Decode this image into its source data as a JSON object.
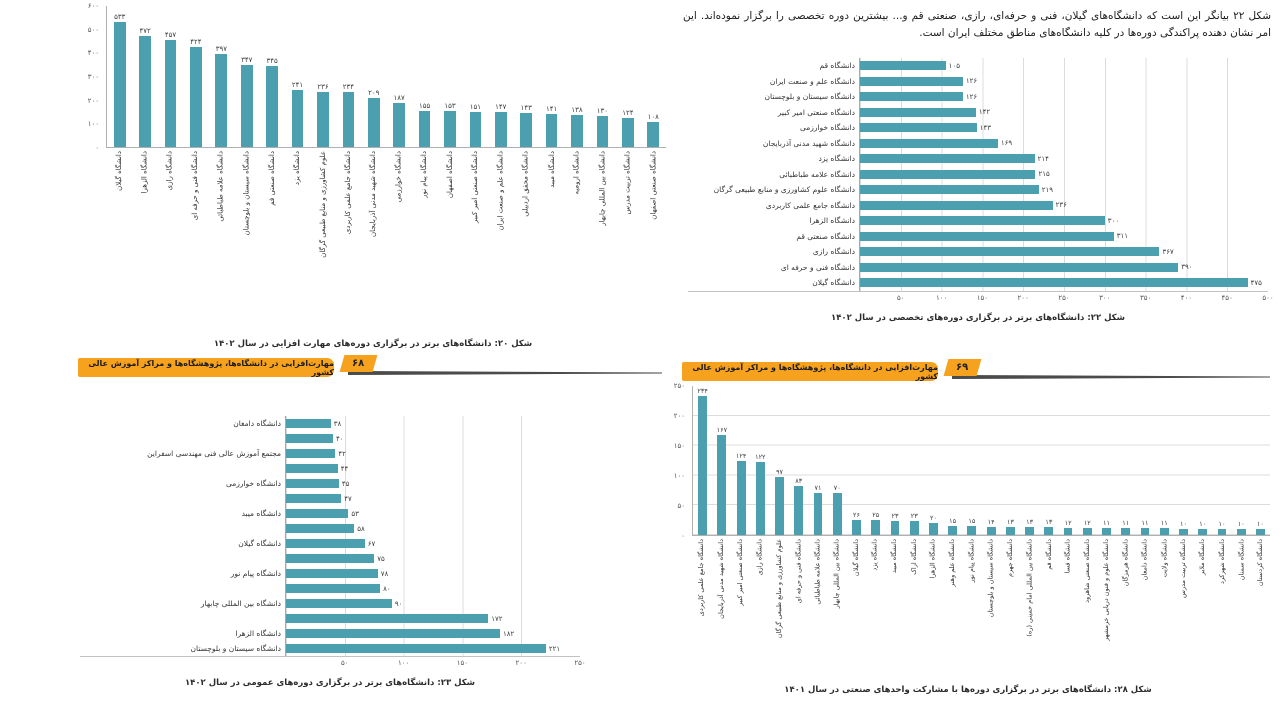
{
  "colors": {
    "bar_teal": "#4c9fae",
    "banner_orange": "#F6A21E",
    "banner_line": "#4b4b4b",
    "grid": "#dcdcdc"
  },
  "intro": {
    "text": "شکل ۲۲ بیانگر این است که دانشگاه‌های گیلان، فنی و حرفه‌ای، رازی، صنعتی قم و... بیشترین دوره تخصصی را برگزار نموده‌اند. این امر نشان دهنده پراکندگی دوره‌ها در کلیه دانشگاه‌های مناطق مختلف ایران است."
  },
  "banners": [
    {
      "text": "مهارت‌افزایی در دانشگاه‌ها، پژوهشگاه‌ها و مراکز آموزش عالی کشور",
      "page": "۶۸"
    },
    {
      "text": "مهارت‌افزایی در دانشگاه‌ها، پژوهشگاه‌ها و مراکز آموزش عالی کشور",
      "page": "۶۹"
    }
  ],
  "chart_data": [
    {
      "type": "bar",
      "caption": "شکل ۲۰: دانشگاه‌های برتر در برگزاری دوره‌های مهارت افزایی در سال ۱۴۰۲",
      "ymax": 600,
      "yticks": [
        600,
        500,
        400,
        300,
        200,
        100,
        0
      ],
      "grid": false,
      "bars": [
        {
          "label": "دانشگاه گیلان",
          "value": 533
        },
        {
          "label": "دانشگاه الزهرا",
          "value": 472
        },
        {
          "label": "دانشگاه رازی",
          "value": 457
        },
        {
          "label": "دانشگاه فنی و حرفه ای",
          "value": 424
        },
        {
          "label": "دانشگاه علامه طباطبائی",
          "value": 397
        },
        {
          "label": "دانشگاه سیستان و بلوچستان",
          "value": 347
        },
        {
          "label": "دانشگاه صنعتی قم",
          "value": 345
        },
        {
          "label": "دانشگاه یزد",
          "value": 241
        },
        {
          "label": "علوم کشاورزی و منابع طبیعی گرگان",
          "value": 236
        },
        {
          "label": "دانشگاه جامع علمی کاربردی",
          "value": 234
        },
        {
          "label": "دانشگاه شهید مدنی آذربایجان",
          "value": 209
        },
        {
          "label": "دانشگاه خوارزمی",
          "value": 187
        },
        {
          "label": "دانشگاه پیام نور",
          "value": 155
        },
        {
          "label": "دانشگاه اصفهان",
          "value": 153
        },
        {
          "label": "دانشگاه صنعتی امیر کبیر",
          "value": 151
        },
        {
          "label": "دانشگاه علم و صنعت ایران",
          "value": 147
        },
        {
          "label": "دانشگاه محقق اردبیلی",
          "value": 143
        },
        {
          "label": "دانشگاه میبد",
          "value": 141
        },
        {
          "label": "دانشگاه ارومیه",
          "value": 138
        },
        {
          "label": "دانشگاه بین المللی چابهار",
          "value": 130
        },
        {
          "label": "دانشگاه تربیت مدرس",
          "value": 124
        },
        {
          "label": "دانشگاه صنعتی اصفهان",
          "value": 108
        }
      ]
    },
    {
      "type": "hbar",
      "caption": "شکل ۲۲: دانشگاه‌های برتر در برگزاری دوره‌های  تخصصی در سال ۱۴۰۲",
      "xmax": 500,
      "xticks": [
        50,
        100,
        150,
        200,
        250,
        300,
        350,
        400,
        450,
        500
      ],
      "bars": [
        {
          "label": "دانشگاه قم",
          "value": 105
        },
        {
          "label": "دانشگاه علم و صنعت ایران",
          "value": 126
        },
        {
          "label": "دانشگاه سیستان و بلوچستان",
          "value": 126
        },
        {
          "label": "دانشگاه صنعتی امیر کبیر",
          "value": 142
        },
        {
          "label": "دانشگاه خوارزمی",
          "value": 143
        },
        {
          "label": "دانشگاه شهید مدنی آذربایجان",
          "value": 169
        },
        {
          "label": "دانشگاه یزد",
          "value": 214
        },
        {
          "label": "دانشگاه علامه طباطبائی",
          "value": 215
        },
        {
          "label": "دانشگاه علوم کشاورزی و منابع طبیعی گرگان",
          "value": 219
        },
        {
          "label": "دانشگاه جامع علمی کاربردی",
          "value": 236
        },
        {
          "label": "دانشگاه الزهرا",
          "value": 300
        },
        {
          "label": "دانشگاه صنعتی قم",
          "value": 311
        },
        {
          "label": "دانشگاه رازی",
          "value": 367
        },
        {
          "label": "دانشگاه فنی و حرفه ای",
          "value": 390
        },
        {
          "label": "دانشگاه گیلان",
          "value": 475
        }
      ]
    },
    {
      "type": "hbar",
      "caption": "شکل ۲۳: دانشگاه‌های برتر در برگزاری دوره‌های عمومی در سال ۱۴۰۲",
      "xmax": 250,
      "xticks": [
        50,
        100,
        150,
        200,
        250
      ],
      "bars": [
        {
          "label": "دانشگاه دامغان",
          "value": 38
        },
        {
          "label": "",
          "value": 40
        },
        {
          "label": "مجتمع آموزش عالی فنی مهندسی اسفراین",
          "value": 42
        },
        {
          "label": "",
          "value": 44
        },
        {
          "label": "دانشگاه خوارزمی",
          "value": 45
        },
        {
          "label": "",
          "value": 47
        },
        {
          "label": "دانشگاه میبد",
          "value": 53
        },
        {
          "label": "",
          "value": 58
        },
        {
          "label": "دانشگاه گیلان",
          "value": 67
        },
        {
          "label": "",
          "value": 75
        },
        {
          "label": "دانشگاه پیام نور",
          "value": 78
        },
        {
          "label": "",
          "value": 80
        },
        {
          "label": "دانشگاه بین المللی چابهار",
          "value": 90
        },
        {
          "label": "",
          "value": 172
        },
        {
          "label": "دانشگاه الزهرا",
          "value": 182
        },
        {
          "label": "دانشگاه سیستان و بلوچستان",
          "value": 221
        }
      ]
    },
    {
      "type": "bar",
      "caption": "شکل ۲۸: دانشگاه‌های برتر در برگزاری دوره‌ها با مشارکت واحدهای صنعتی در سال ۱۴۰۱",
      "ymax": 250,
      "yticks": [
        250,
        200,
        150,
        100,
        50,
        0
      ],
      "grid": true,
      "bars": [
        {
          "label": "دانشگاه جامع علمی کاربردی",
          "value": 234
        },
        {
          "label": "دانشگاه شهید مدنی آذربایجان",
          "value": 167
        },
        {
          "label": "دانشگاه صنعتی امیر کبیر",
          "value": 124
        },
        {
          "label": "دانشگاه رازی",
          "value": 122
        },
        {
          "label": "علوم کشاورزی و منابع طبیعی گرگان",
          "value": 97
        },
        {
          "label": "دانشگاه فنی و حرفه ای",
          "value": 83
        },
        {
          "label": "دانشگاه علامه طباطبائی",
          "value": 71
        },
        {
          "label": "دانشگاه بین المللی چابهار",
          "value": 70
        },
        {
          "label": "دانشگاه گیلان",
          "value": 26
        },
        {
          "label": "دانشگاه یزد",
          "value": 25
        },
        {
          "label": "دانشگاه میبد",
          "value": 23
        },
        {
          "label": "دانشگاه اراک",
          "value": 23
        },
        {
          "label": "دانشگاه الزهرا",
          "value": 20
        },
        {
          "label": "دانشگاه علم وهنر",
          "value": 15
        },
        {
          "label": "دانشگاه پیام نور",
          "value": 15
        },
        {
          "label": "دانشگاه سیستان و بلوچستان",
          "value": 14
        },
        {
          "label": "دانشگاه جهرم",
          "value": 13
        },
        {
          "label": "دانشگاه بین المللی امام خمینی (ره)",
          "value": 13
        },
        {
          "label": "دانشگاه قم",
          "value": 13
        },
        {
          "label": "دانشگاه فسا",
          "value": 12
        },
        {
          "label": "دانشگاه صنعتی شاهرود",
          "value": 12
        },
        {
          "label": "دانشگاه علوم و فنون دریایی خرمشهر",
          "value": 11
        },
        {
          "label": "دانشگاه هرمزگان",
          "value": 11
        },
        {
          "label": "دانشگاه دامغان",
          "value": 11
        },
        {
          "label": "دانشگاه ولایت",
          "value": 11
        },
        {
          "label": "دانشگاه تربیت مدرس",
          "value": 10
        },
        {
          "label": "دانشگاه ملایر",
          "value": 10
        },
        {
          "label": "دانشگاه شهرکرد",
          "value": 10
        },
        {
          "label": "دانشگاه سمنان",
          "value": 10
        },
        {
          "label": "دانشگاه کردستان",
          "value": 10
        }
      ]
    }
  ]
}
